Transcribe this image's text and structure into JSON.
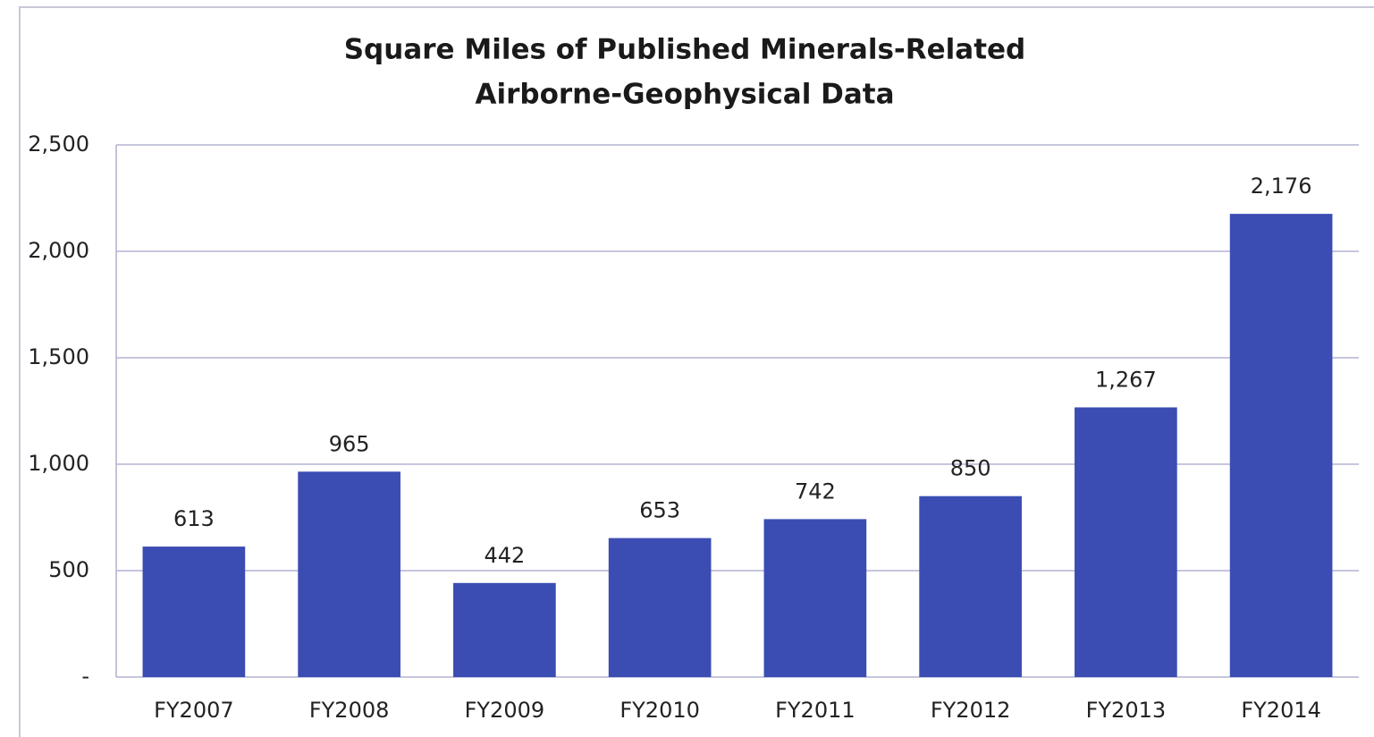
{
  "chart_data": {
    "type": "bar",
    "title": [
      "Square Miles of Published Minerals-Related",
      "Airborne-Geophysical Data"
    ],
    "categories": [
      "FY2007",
      "FY2008",
      "FY2009",
      "FY2010",
      "FY2011",
      "FY2012",
      "FY2013",
      "FY2014"
    ],
    "values": [
      613,
      965,
      442,
      653,
      742,
      850,
      1267,
      2176
    ],
    "value_labels": [
      "613",
      "965",
      "442",
      "653",
      "742",
      "850",
      "1,267",
      "2,176"
    ],
    "color": "#3b4db3",
    "ylim": [
      0,
      2500
    ],
    "yticks": [
      {
        "value": 0,
        "label": "-"
      },
      500,
      {
        "value": 1000,
        "label": "1,000"
      },
      {
        "value": 1500,
        "label": "1,500"
      },
      {
        "value": 2000,
        "label": "2,000"
      },
      {
        "value": 2500,
        "label": "2,500"
      }
    ],
    "grid": true
  }
}
